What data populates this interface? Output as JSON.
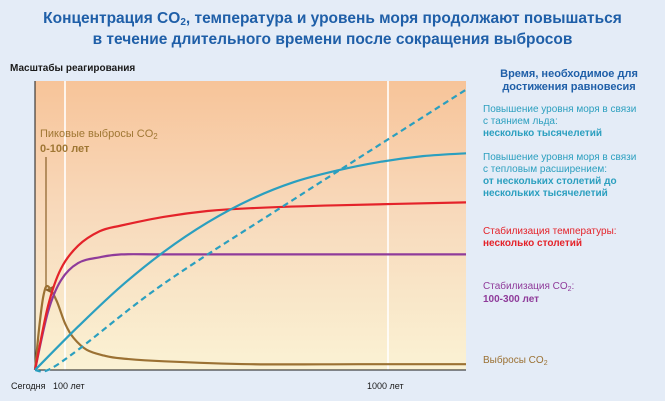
{
  "title": {
    "line1_pre": "Концентрация CO",
    "line1_sub": "2",
    "line1_post": ", температура и уровень моря продолжают повышаться",
    "line2": "в течение длительного времени после сокращения выбросов"
  },
  "y_label": "Масштабы реагирования",
  "right_heading": {
    "line1": "Время, необходимое для",
    "line2": "достижения равновесия"
  },
  "peak_label": {
    "line1_pre": "Пиковые выбросы CO",
    "line1_sub": "2",
    "line2": "0-100 лет"
  },
  "notes": {
    "sea_ice": {
      "line1": "Повышение уровня моря в связи",
      "line2": "с таянием льда:",
      "bold": "несколько тысячелетий"
    },
    "sea_thermal": {
      "line1": "Повышение уровня моря в связи",
      "line2": "с тепловым расширением:",
      "bold1": "от нескольких столетий до",
      "bold2": "нескольких тысячелетий"
    },
    "temperature": {
      "line1": "Стабилизация температуры:",
      "bold": "несколько столетий"
    },
    "co2": {
      "line1_pre": "Стабилизация CO",
      "line1_sub": "2",
      "line1_post": ":",
      "bold": "100-300 лет"
    },
    "emissions": {
      "pre": "Выбросы CO",
      "sub": "2"
    }
  },
  "x_ticks": [
    "Сегодня",
    "100 лет",
    "1000 лет"
  ],
  "colors": {
    "title": "#1f5fa8",
    "emissions": "#9b7133",
    "co2": "#8f3b9a",
    "temperature": "#e4232a",
    "sea_level": "#2b9fbf",
    "peak_text": "#a07734"
  },
  "chart_data": {
    "type": "line",
    "xlabel": "",
    "ylabel": "Масштабы реагирования",
    "x_ticks": [
      "Сегодня",
      "100 лет",
      "1000 лет"
    ],
    "xlim": [
      0,
      1
    ],
    "ylim": [
      0,
      1
    ],
    "series": [
      {
        "name": "Выбросы CO2",
        "x": [
          0,
          0.01,
          0.02,
          0.03,
          0.05,
          0.07,
          0.09,
          0.12,
          0.16,
          0.2,
          0.3,
          0.5,
          0.75,
          1.0
        ],
        "y": [
          0,
          0.15,
          0.26,
          0.29,
          0.24,
          0.16,
          0.11,
          0.07,
          0.05,
          0.04,
          0.03,
          0.02,
          0.02,
          0.02
        ]
      },
      {
        "name": "Стабилизация CO2: 100-300 лет",
        "x": [
          0,
          0.03,
          0.06,
          0.1,
          0.15,
          0.2,
          0.3,
          0.5,
          1.0
        ],
        "y": [
          0,
          0.2,
          0.31,
          0.37,
          0.39,
          0.4,
          0.4,
          0.4,
          0.4
        ]
      },
      {
        "name": "Стабилизация температуры: несколько столетий",
        "x": [
          0,
          0.03,
          0.06,
          0.1,
          0.15,
          0.2,
          0.3,
          0.4,
          0.5,
          0.7,
          1.0
        ],
        "y": [
          0,
          0.22,
          0.35,
          0.43,
          0.48,
          0.5,
          0.53,
          0.55,
          0.56,
          0.57,
          0.58
        ]
      },
      {
        "name": "Повышение уровня моря (тепловое расширение)",
        "x": [
          0,
          0.1,
          0.2,
          0.3,
          0.4,
          0.5,
          0.6,
          0.7,
          0.8,
          0.9,
          1.0
        ],
        "y": [
          0,
          0.15,
          0.29,
          0.41,
          0.51,
          0.59,
          0.65,
          0.69,
          0.72,
          0.74,
          0.75
        ]
      },
      {
        "name": "Повышение уровня моря (таяние льда)",
        "x": [
          0,
          0.03,
          0.1,
          0.3,
          0.6,
          0.8,
          1.0
        ],
        "y": [
          0,
          0.0,
          0.07,
          0.3,
          0.59,
          0.78,
          0.97
        ]
      }
    ]
  }
}
